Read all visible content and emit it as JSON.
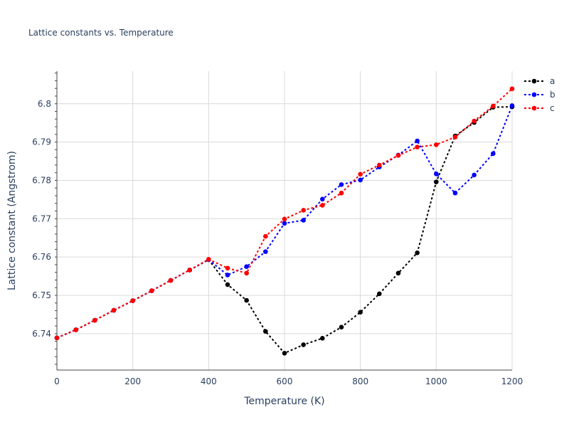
{
  "chart_data": {
    "type": "line",
    "title": "Lattice constants vs. Temperature",
    "xlabel": "Temperature (K)",
    "ylabel": "Lattice constant (Angstrom)",
    "xlim": [
      0,
      1200
    ],
    "ylim": [
      6.7305,
      6.8085
    ],
    "xticks": [
      0,
      200,
      400,
      600,
      800,
      1000,
      1200
    ],
    "yticks": [
      6.74,
      6.75,
      6.76,
      6.77,
      6.78,
      6.79,
      6.8
    ],
    "ytick_labels": [
      "6.74",
      "6.75",
      "6.76",
      "6.77",
      "6.78",
      "6.79",
      "6.8"
    ],
    "grid": true,
    "legend_position": "top-right",
    "x": [
      0,
      50,
      100,
      150,
      200,
      250,
      300,
      350,
      400,
      450,
      500,
      550,
      600,
      650,
      700,
      750,
      800,
      850,
      900,
      950,
      1000,
      1050,
      1100,
      1150,
      1200
    ],
    "series": [
      {
        "name": "a",
        "color": "#000000",
        "values": [
          6.7389,
          6.741,
          6.7435,
          6.7461,
          6.7486,
          6.7512,
          6.7539,
          6.7566,
          6.7593,
          6.7528,
          6.7487,
          6.7406,
          6.7349,
          6.7371,
          6.7388,
          6.7417,
          6.7456,
          6.7504,
          6.7558,
          6.7611,
          6.7796,
          6.7916,
          6.7951,
          6.7991,
          6.7992
        ]
      },
      {
        "name": "b",
        "color": "#0000ff",
        "values": [
          6.7389,
          6.741,
          6.7435,
          6.7461,
          6.7486,
          6.7512,
          6.7539,
          6.7566,
          6.7593,
          6.7553,
          6.7575,
          6.7614,
          6.7688,
          6.7696,
          6.7751,
          6.7789,
          6.7801,
          6.7835,
          6.7866,
          6.7903,
          6.7817,
          6.7767,
          6.7814,
          6.787,
          6.7995
        ]
      },
      {
        "name": "c",
        "color": "#ff0000",
        "values": [
          6.7389,
          6.741,
          6.7435,
          6.7461,
          6.7486,
          6.7512,
          6.7539,
          6.7566,
          6.7594,
          6.7571,
          6.7558,
          6.7654,
          6.7699,
          6.7722,
          6.7735,
          6.7767,
          6.7816,
          6.784,
          6.7865,
          6.7887,
          6.7893,
          6.7913,
          6.7955,
          6.7994,
          6.8039
        ]
      }
    ]
  }
}
